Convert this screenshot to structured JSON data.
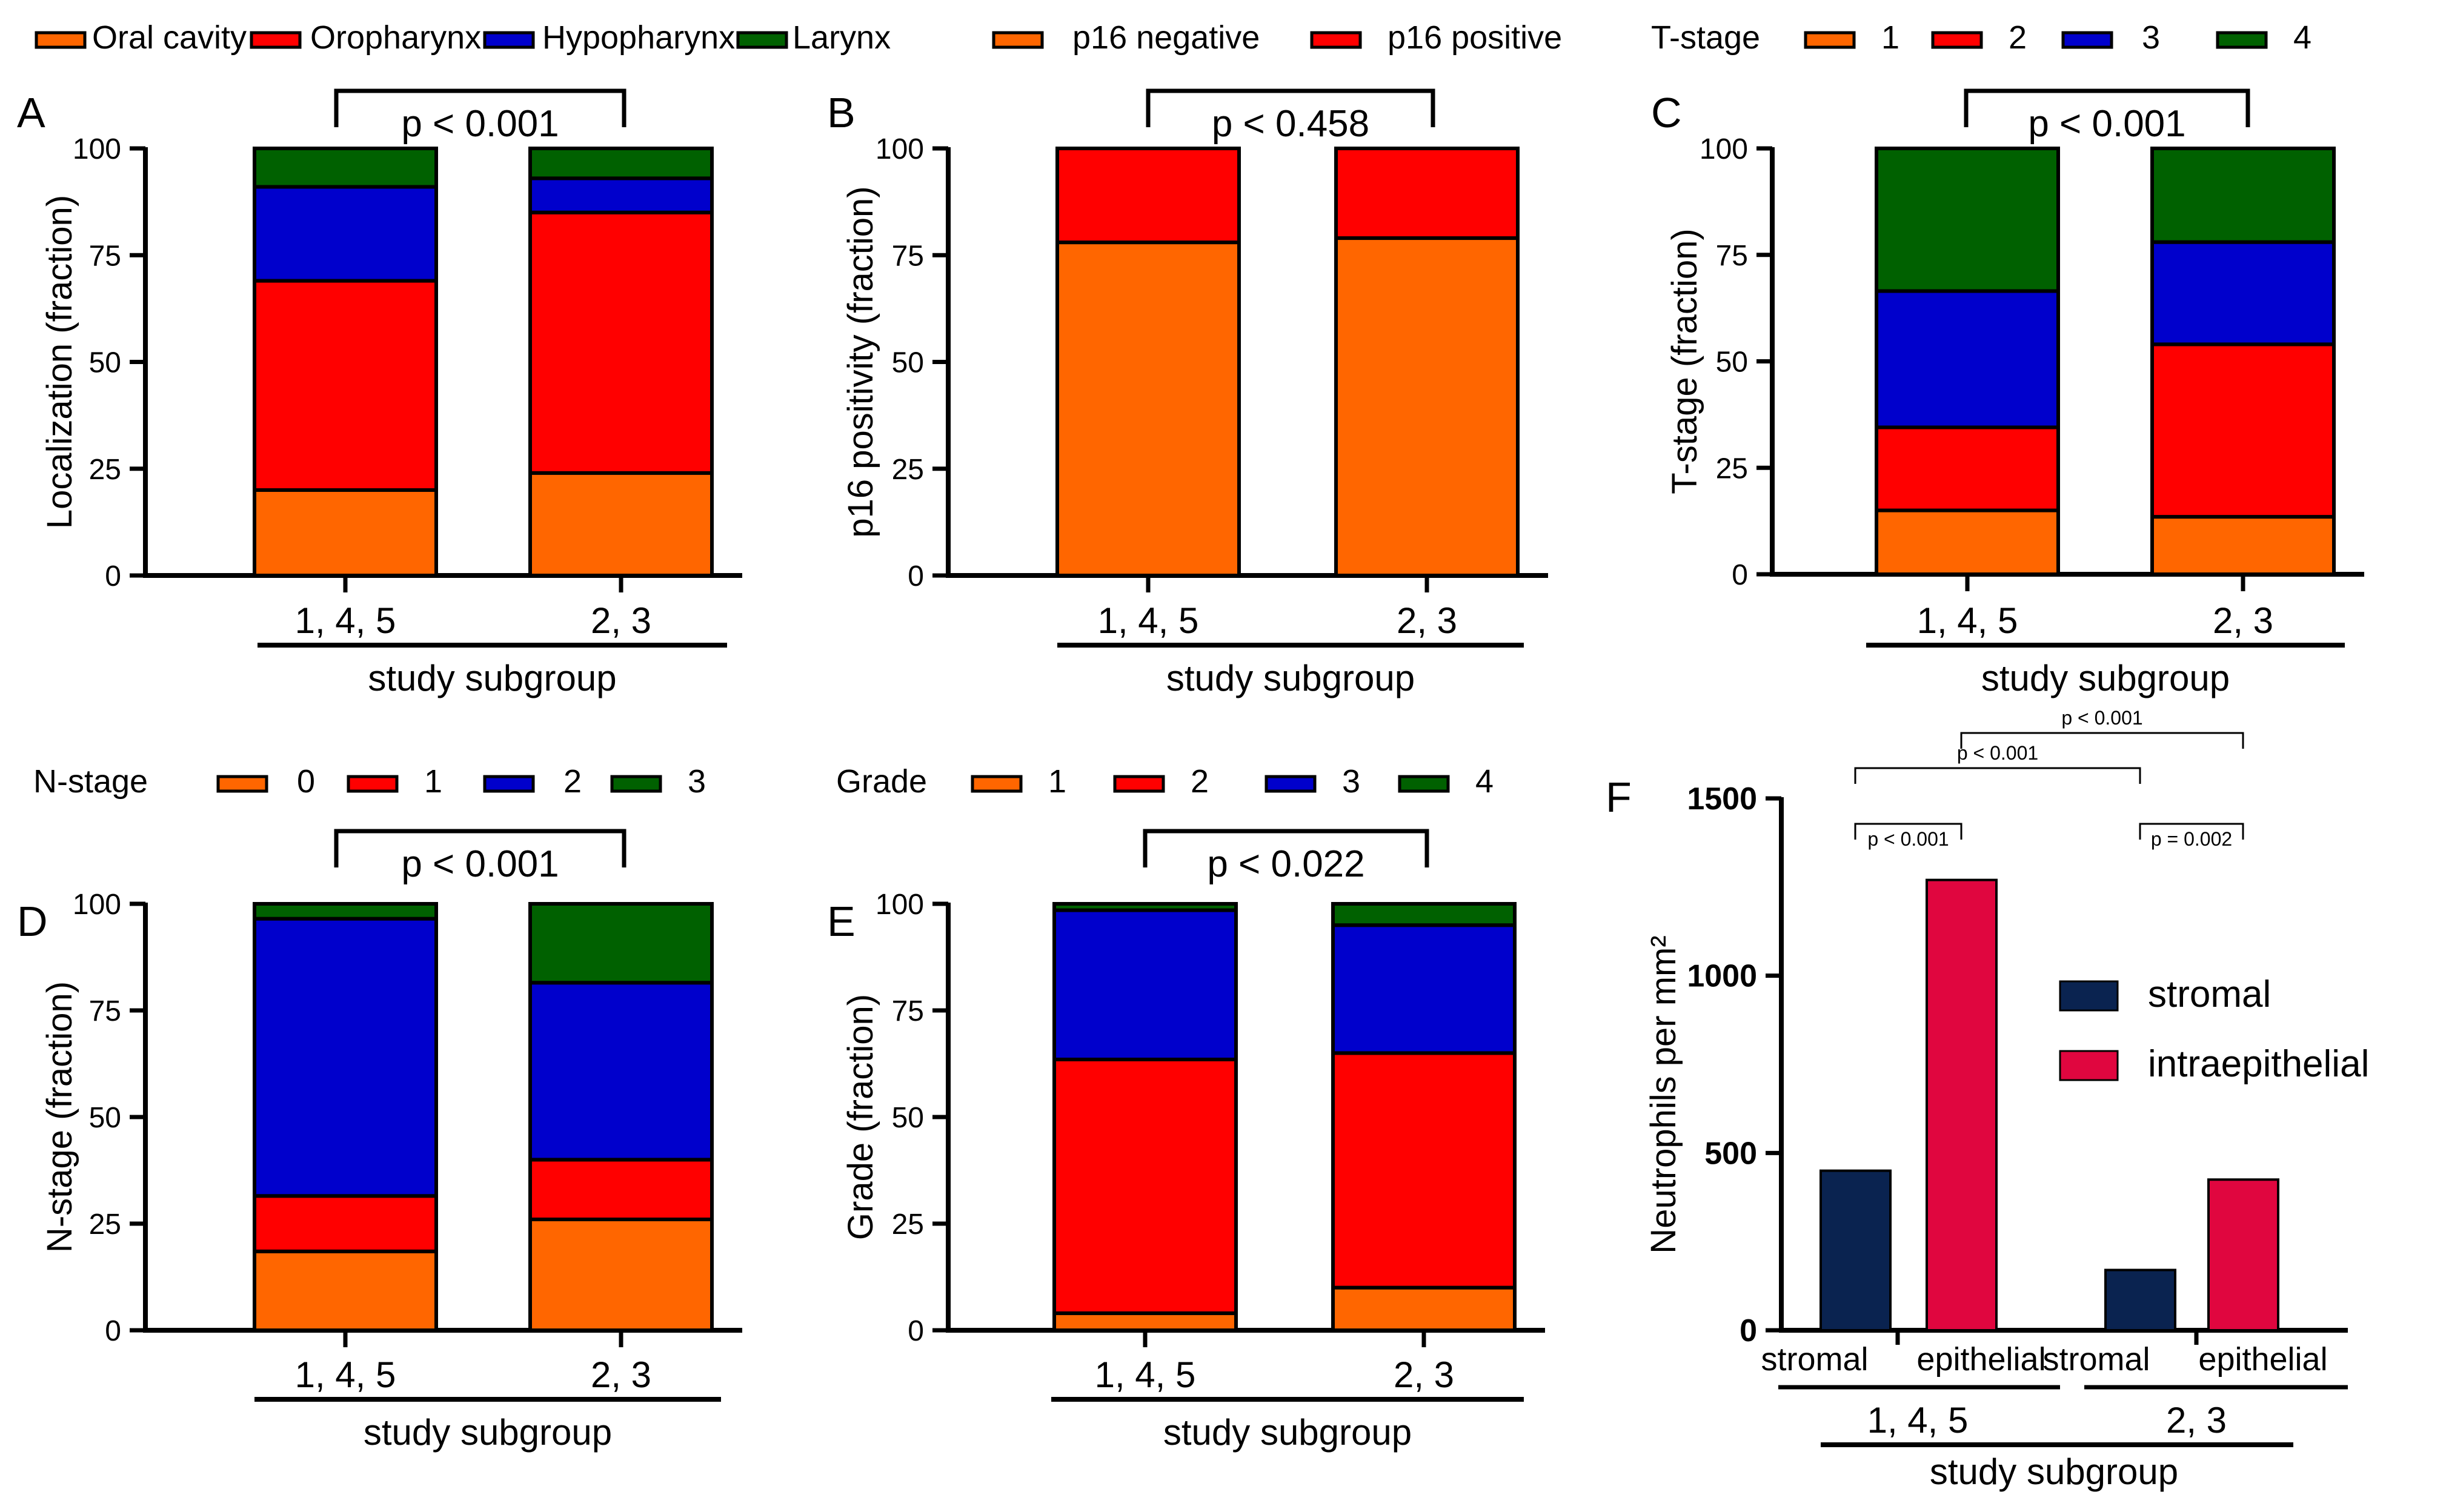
{
  "colors": {
    "orange": "#ff6600",
    "red": "#ff0000",
    "blue": "#0000cc",
    "green": "#006100",
    "navy": "#0a2350",
    "crimson": "#e0063f",
    "black": "#000000"
  },
  "chart_data": [
    {
      "id": "A",
      "type": "bar",
      "stacked": true,
      "panel_label": "A",
      "ylabel": "Localization (fraction)",
      "xlabel": "study subgroup",
      "categories": [
        "1, 4, 5",
        "2, 3"
      ],
      "ylim": [
        0,
        100
      ],
      "yticks": [
        "0",
        "25",
        "50",
        "75",
        "100"
      ],
      "legend_title": "",
      "series": [
        {
          "name": "Oral cavity",
          "color": "#ff6600",
          "values": [
            20,
            24
          ]
        },
        {
          "name": "Oropharynx",
          "color": "#ff0000",
          "values": [
            49,
            61
          ]
        },
        {
          "name": "Hypopharynx",
          "color": "#0000cc",
          "values": [
            22,
            8
          ]
        },
        {
          "name": "Larynx",
          "color": "#006100",
          "values": [
            9,
            7
          ]
        }
      ],
      "pvalue": "p < 0.001"
    },
    {
      "id": "B",
      "type": "bar",
      "stacked": true,
      "panel_label": "B",
      "ylabel": "p16 positivity (fraction)",
      "xlabel": "study subgroup",
      "categories": [
        "1, 4, 5",
        "2, 3"
      ],
      "ylim": [
        0,
        100
      ],
      "yticks": [
        "0",
        "25",
        "50",
        "75",
        "100"
      ],
      "legend_title": "",
      "series": [
        {
          "name": "p16 negative",
          "color": "#ff6600",
          "values": [
            78,
            79
          ]
        },
        {
          "name": "p16 positive",
          "color": "#ff0000",
          "values": [
            22,
            21
          ]
        }
      ],
      "pvalue": "p < 0.458"
    },
    {
      "id": "C",
      "type": "bar",
      "stacked": true,
      "panel_label": "C",
      "ylabel": "T-stage (fraction)",
      "xlabel": "study subgroup",
      "categories": [
        "1, 4, 5",
        "2, 3"
      ],
      "ylim": [
        0,
        100
      ],
      "yticks": [
        "0",
        "25",
        "50",
        "75",
        "100"
      ],
      "legend_title": "T-stage",
      "series": [
        {
          "name": "1",
          "color": "#ff6600",
          "values": [
            15,
            13.5
          ]
        },
        {
          "name": "2",
          "color": "#ff0000",
          "values": [
            19.5,
            40.5
          ]
        },
        {
          "name": "3",
          "color": "#0000cc",
          "values": [
            32,
            24
          ]
        },
        {
          "name": "4",
          "color": "#006100",
          "values": [
            33.5,
            22
          ]
        }
      ],
      "pvalue": "p < 0.001"
    },
    {
      "id": "D",
      "type": "bar",
      "stacked": true,
      "panel_label": "D",
      "ylabel": "N-stage (fraction)",
      "xlabel": "study subgroup",
      "categories": [
        "1, 4, 5",
        "2, 3"
      ],
      "ylim": [
        0,
        100
      ],
      "yticks": [
        "0",
        "25",
        "50",
        "75",
        "100"
      ],
      "legend_title": "N-stage",
      "series": [
        {
          "name": "0",
          "color": "#ff6600",
          "values": [
            18.5,
            26
          ]
        },
        {
          "name": "1",
          "color": "#ff0000",
          "values": [
            13,
            14
          ]
        },
        {
          "name": "2",
          "color": "#0000cc",
          "values": [
            65,
            41.5
          ]
        },
        {
          "name": "3",
          "color": "#006100",
          "values": [
            3.5,
            18.5
          ]
        }
      ],
      "pvalue": "p < 0.001"
    },
    {
      "id": "E",
      "type": "bar",
      "stacked": true,
      "panel_label": "E",
      "ylabel": "Grade (fraction)",
      "xlabel": "study subgroup",
      "categories": [
        "1, 4, 5",
        "2, 3"
      ],
      "ylim": [
        0,
        100
      ],
      "yticks": [
        "0",
        "25",
        "50",
        "75",
        "100"
      ],
      "legend_title": "Grade",
      "series": [
        {
          "name": "1",
          "color": "#ff6600",
          "values": [
            4,
            10
          ]
        },
        {
          "name": "2",
          "color": "#ff0000",
          "values": [
            59.5,
            55
          ]
        },
        {
          "name": "3",
          "color": "#0000cc",
          "values": [
            35,
            30
          ]
        },
        {
          "name": "4",
          "color": "#006100",
          "values": [
            1.5,
            5
          ]
        }
      ],
      "pvalue": "p < 0.022"
    },
    {
      "id": "F",
      "type": "bar",
      "stacked": false,
      "panel_label": "F",
      "ylabel": "Neutrophils per mm²",
      "xlabel": "study subgroup",
      "groups": [
        "1, 4, 5",
        "2, 3"
      ],
      "bar_labels": [
        "stromal",
        "epithelial",
        "stromal",
        "epithelial"
      ],
      "values": [
        450,
        1270,
        170,
        425
      ],
      "bar_series": [
        "stromal",
        "intraepithelial",
        "stromal",
        "intraepithelial"
      ],
      "ylim": [
        0,
        1500
      ],
      "yticks": [
        "0",
        "500",
        "1000",
        "1500"
      ],
      "legend": [
        {
          "name": "stromal",
          "color": "#0a2350"
        },
        {
          "name": "intraepithelial",
          "color": "#e0063f"
        }
      ],
      "comparisons": [
        {
          "from": 0,
          "to": 1,
          "label": "p < 0.001"
        },
        {
          "from": 2,
          "to": 3,
          "label": "p = 0.002"
        },
        {
          "from": 0,
          "to": 2,
          "label": "p < 0.001"
        },
        {
          "from": 1,
          "to": 3,
          "label": "p < 0.001"
        }
      ]
    }
  ]
}
